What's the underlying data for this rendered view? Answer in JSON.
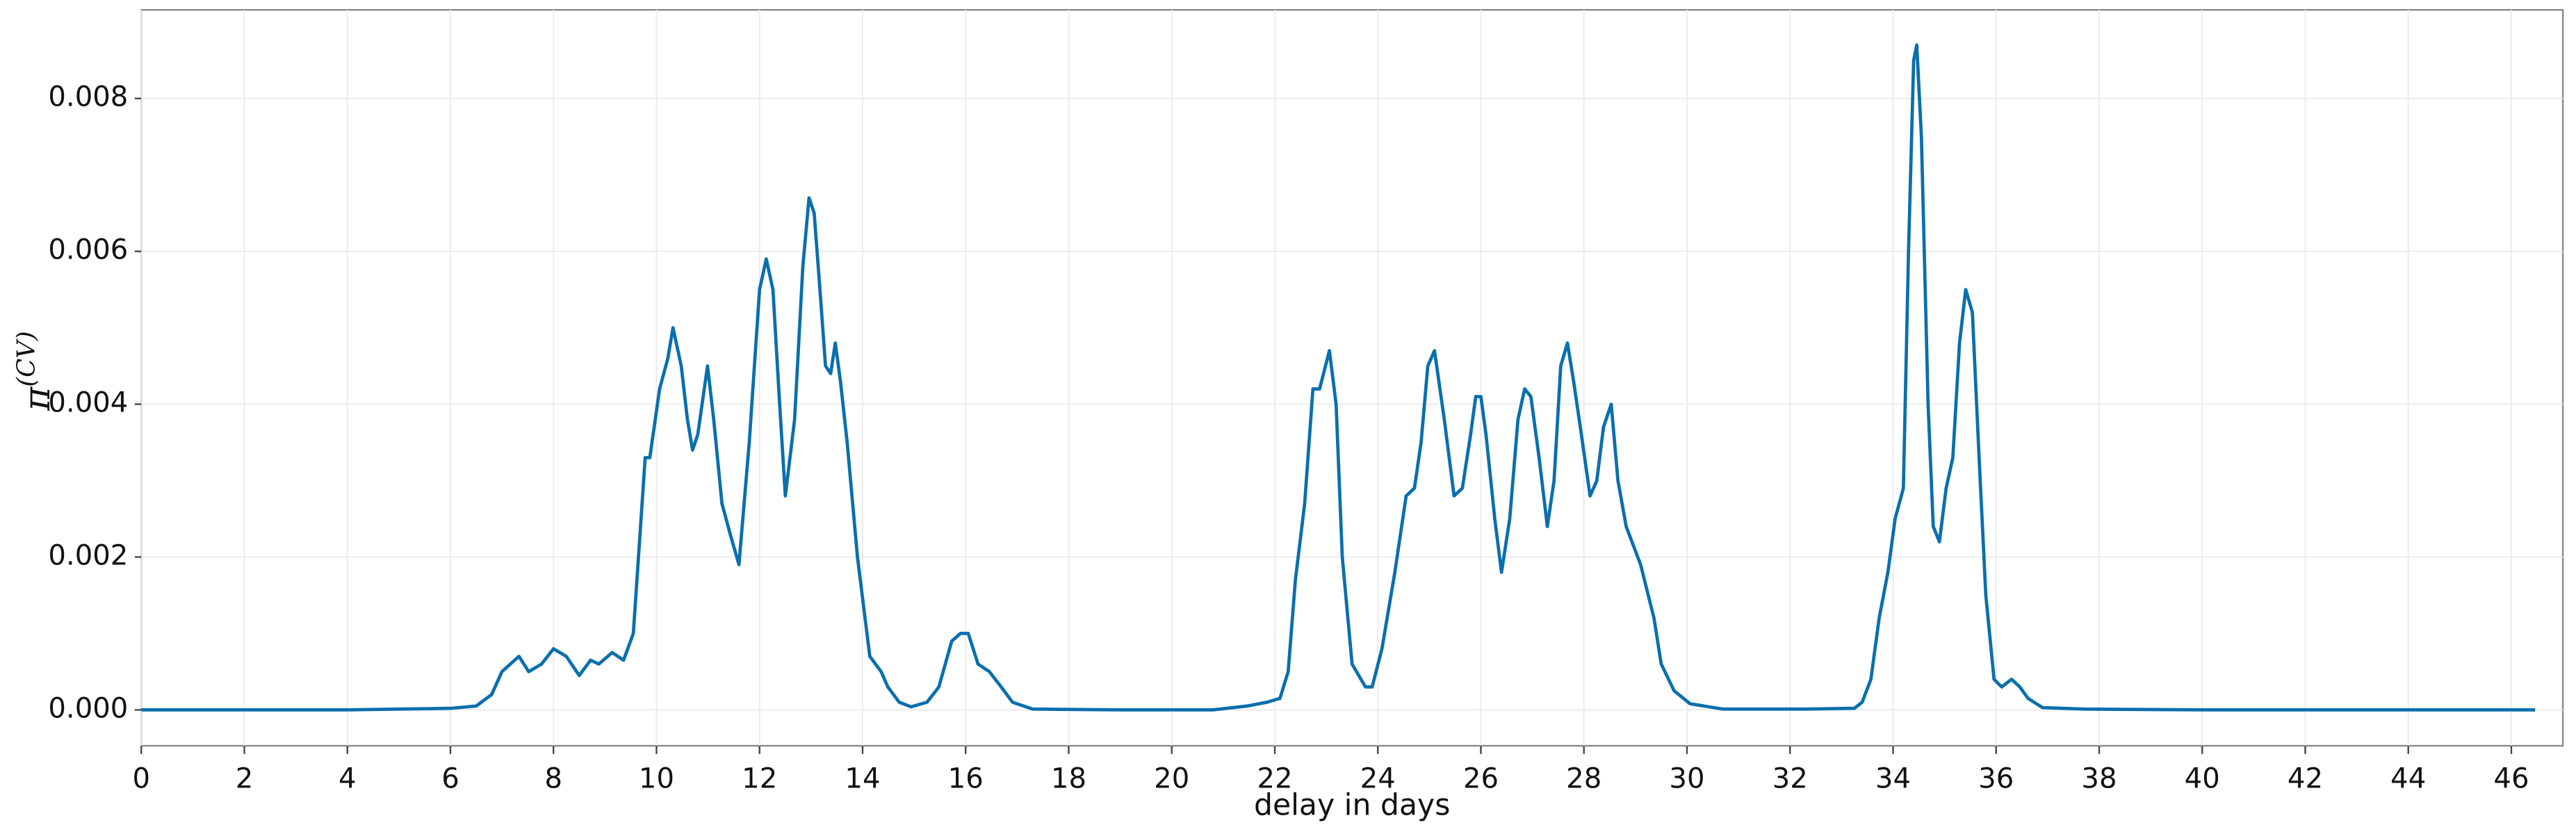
{
  "chart_data": {
    "type": "line",
    "x_label": "delay in days",
    "y_label": "π",
    "y_label_sup": "(CV)",
    "color": "#0a6fad",
    "grid": true,
    "xlim": [
      0,
      47
    ],
    "ylim": [
      -0.00047,
      0.00916
    ],
    "xticks": [
      0,
      2,
      4,
      6,
      8,
      10,
      12,
      14,
      16,
      18,
      20,
      22,
      24,
      26,
      28,
      30,
      32,
      34,
      36,
      38,
      40,
      42,
      44,
      46
    ],
    "yticks": [
      {
        "value": 0,
        "label": "0.000"
      },
      {
        "value": 0.002,
        "label": "0.002"
      },
      {
        "value": 0.004,
        "label": "0.004"
      },
      {
        "value": 0.006,
        "label": "0.006"
      },
      {
        "value": 0.008,
        "label": "0.008"
      }
    ],
    "x": [
      0,
      2,
      4,
      5,
      6,
      6.5,
      6.8,
      7.0,
      7.33,
      7.52,
      7.77,
      8.0,
      8.25,
      8.5,
      8.72,
      8.88,
      9.14,
      9.36,
      9.55,
      9.78,
      9.87,
      10.06,
      10.22,
      10.32,
      10.48,
      10.6,
      10.7,
      10.8,
      10.99,
      11.11,
      11.27,
      11.43,
      11.6,
      11.8,
      12.0,
      12.13,
      12.26,
      12.39,
      12.5,
      12.68,
      12.84,
      12.96,
      13.06,
      13.15,
      13.28,
      13.38,
      13.47,
      13.57,
      13.7,
      13.9,
      14.14,
      14.36,
      14.49,
      14.71,
      14.94,
      15.25,
      15.48,
      15.73,
      15.9,
      16.05,
      16.24,
      16.46,
      16.69,
      16.91,
      17.3,
      19,
      20.8,
      21.46,
      21.85,
      22.1,
      22.26,
      22.4,
      22.58,
      22.74,
      22.87,
      23.06,
      23.19,
      23.31,
      23.5,
      23.76,
      23.89,
      24.08,
      24.33,
      24.55,
      24.71,
      24.84,
      24.97,
      25.1,
      25.29,
      25.48,
      25.64,
      25.8,
      25.9,
      26.0,
      26.1,
      26.27,
      26.4,
      26.56,
      26.72,
      26.85,
      26.97,
      27.13,
      27.29,
      27.42,
      27.55,
      27.68,
      27.8,
      27.93,
      28.12,
      28.25,
      28.38,
      28.53,
      28.66,
      28.82,
      29.1,
      29.36,
      29.5,
      29.75,
      30.06,
      30.7,
      32.3,
      33.25,
      33.4,
      33.57,
      33.73,
      33.9,
      34.04,
      34.2,
      34.3,
      34.4,
      34.46,
      34.55,
      34.68,
      34.78,
      34.9,
      35.03,
      35.16,
      35.29,
      35.41,
      35.54,
      35.67,
      35.8,
      35.96,
      36.11,
      36.3,
      36.46,
      36.62,
      36.9,
      37.7,
      40,
      43,
      46.46
    ],
    "values": [
      0,
      0,
      0,
      1e-05,
      2e-05,
      5e-05,
      0.0002,
      0.0005,
      0.0007,
      0.0005,
      0.0006,
      0.0008,
      0.0007,
      0.00045,
      0.00065,
      0.0006,
      0.00075,
      0.00065,
      0.001,
      0.0033,
      0.0033,
      0.0042,
      0.0046,
      0.005,
      0.0045,
      0.0038,
      0.0034,
      0.0036,
      0.0045,
      0.0038,
      0.0027,
      0.0023,
      0.0019,
      0.0035,
      0.0055,
      0.0059,
      0.0055,
      0.004,
      0.0028,
      0.0038,
      0.0058,
      0.0067,
      0.0065,
      0.0057,
      0.0045,
      0.0044,
      0.0048,
      0.0043,
      0.0035,
      0.002,
      0.0007,
      0.0005,
      0.0003,
      0.0001,
      4e-05,
      0.0001,
      0.0003,
      0.0009,
      0.001,
      0.001,
      0.0006,
      0.0005,
      0.0003,
      0.0001,
      1e-05,
      0,
      0,
      5e-05,
      0.0001,
      0.00015,
      0.0005,
      0.0017,
      0.0027,
      0.0042,
      0.0042,
      0.0047,
      0.004,
      0.002,
      0.0006,
      0.0003,
      0.0003,
      0.0008,
      0.0018,
      0.0028,
      0.0029,
      0.0035,
      0.0045,
      0.0047,
      0.0038,
      0.0028,
      0.0029,
      0.0036,
      0.0041,
      0.0041,
      0.0036,
      0.0025,
      0.0018,
      0.0025,
      0.0038,
      0.0042,
      0.0041,
      0.0033,
      0.0024,
      0.003,
      0.0045,
      0.0048,
      0.0043,
      0.0037,
      0.0028,
      0.003,
      0.0037,
      0.004,
      0.003,
      0.0024,
      0.0019,
      0.0012,
      0.0006,
      0.00025,
      8e-05,
      1e-05,
      1e-05,
      2e-05,
      0.0001,
      0.0004,
      0.0012,
      0.0018,
      0.0025,
      0.0029,
      0.006,
      0.0085,
      0.0087,
      0.0075,
      0.004,
      0.0024,
      0.0022,
      0.0029,
      0.0033,
      0.0048,
      0.0055,
      0.0052,
      0.0033,
      0.0015,
      0.0004,
      0.0003,
      0.0004,
      0.0003,
      0.00015,
      3e-05,
      1e-05,
      0,
      0,
      0
    ]
  }
}
